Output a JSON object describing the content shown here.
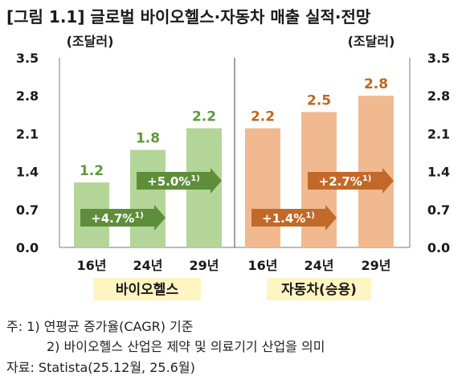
{
  "title": "[그림 1.1] 글로벌 바이오헬스·자동차 매출 실적·전망",
  "colors": {
    "bio_bar": "#b3d698",
    "bio_text": "#5c9a3a",
    "bio_arrow": "#5f8e3a",
    "auto_bar": "#f1b98f",
    "auto_text": "#c0651f",
    "auto_arrow": "#c2692a",
    "category_box": "#fff5c2"
  },
  "chart_data": [
    {
      "type": "bar",
      "group_label": "바이오헬스",
      "unit": "(조달러)",
      "categories": [
        "16년",
        "24년",
        "29년"
      ],
      "values": [
        1.2,
        1.8,
        2.2
      ],
      "value_labels": [
        "1.2",
        "1.8",
        "2.2"
      ],
      "ylim": [
        0,
        3.5
      ],
      "yticks": [
        "3.5",
        "2.8",
        "2.1",
        "1.4",
        "0.7",
        "0.0"
      ],
      "annotations": [
        {
          "text": "+4.7%",
          "sup": "1)",
          "from": "16년",
          "to": "24년"
        },
        {
          "text": "+5.0%",
          "sup": "1)",
          "from": "24년",
          "to": "29년"
        }
      ]
    },
    {
      "type": "bar",
      "group_label": "자동차(승용)",
      "unit": "(조달러)",
      "categories": [
        "16년",
        "24년",
        "29년"
      ],
      "values": [
        2.2,
        2.5,
        2.8
      ],
      "value_labels": [
        "2.2",
        "2.5",
        "2.8"
      ],
      "ylim": [
        0,
        3.5
      ],
      "yticks": [
        "3.5",
        "2.8",
        "2.1",
        "1.4",
        "0.7",
        "0.0"
      ],
      "annotations": [
        {
          "text": "+1.4%",
          "sup": "1)",
          "from": "16년",
          "to": "24년"
        },
        {
          "text": "+2.7%",
          "sup": "1)",
          "from": "24년",
          "to": "29년"
        }
      ]
    }
  ],
  "notes": {
    "note1": "주: 1) 연평균 증가율(CAGR) 기준",
    "note2": "2) 바이오헬스 산업은 제약 및 의료기기 산업을 의미",
    "source": "자료: Statista(25.12월, 25.6월)"
  }
}
